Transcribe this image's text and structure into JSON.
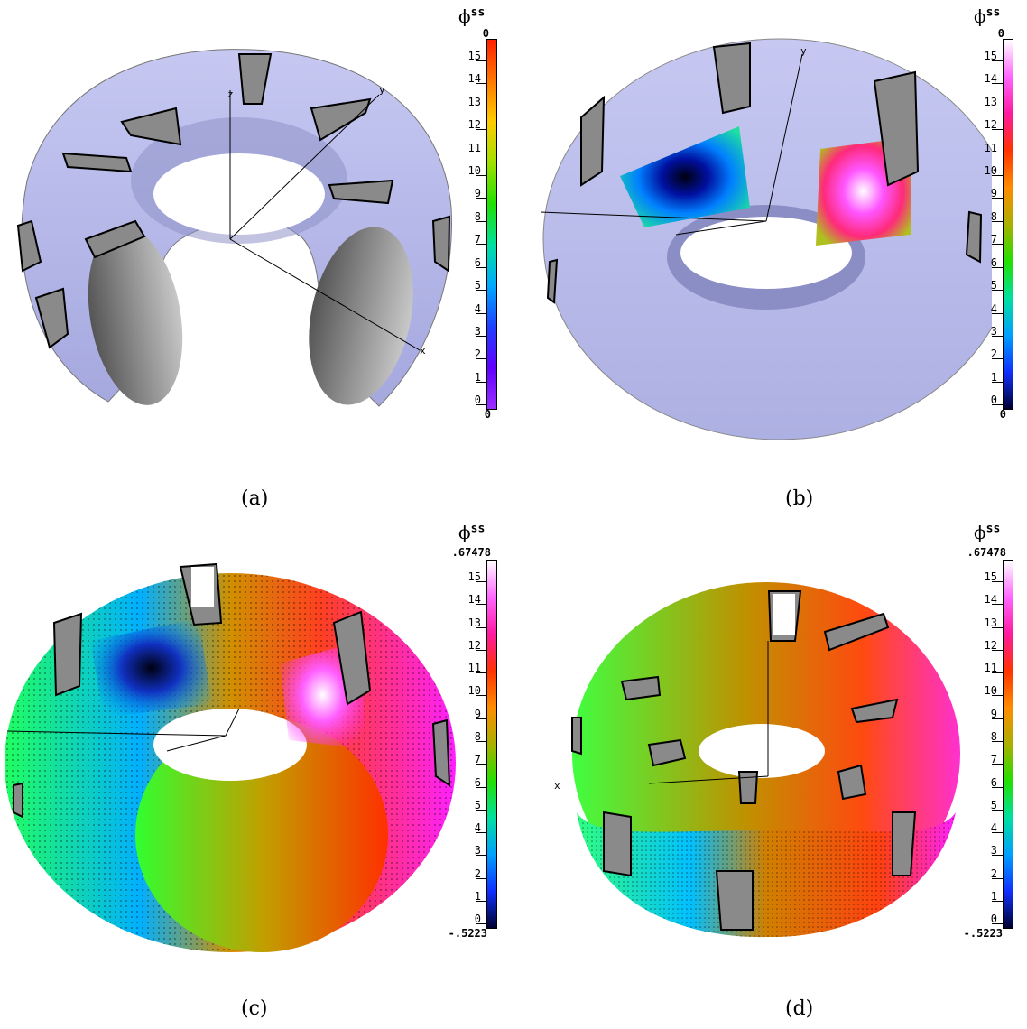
{
  "panels": [
    {
      "caption": "(a)",
      "cb_title": "ϕ",
      "cb_title_sup": "ss",
      "cb_top": "0",
      "cb_bottom": "0",
      "axis_labels": [
        "z",
        "y",
        "x"
      ]
    },
    {
      "caption": "(b)",
      "cb_title": "ϕ",
      "cb_title_sup": "ss",
      "cb_top": "0",
      "cb_bottom": "0",
      "axis_labels": [
        "y"
      ]
    },
    {
      "caption": "(c)",
      "cb_title": "ϕ",
      "cb_title_sup": "ss",
      "cb_top": ".67478",
      "cb_bottom": "-.5223",
      "axis_labels": []
    },
    {
      "caption": "(d)",
      "cb_title": "ϕ",
      "cb_title_sup": "ss",
      "cb_top": ".67478",
      "cb_bottom": "-.5223",
      "axis_labels": [
        "x"
      ]
    }
  ],
  "ticks": [
    "15",
    "14",
    "13",
    "12",
    "11",
    "10",
    "9",
    "8",
    "7",
    "6",
    "5",
    "4",
    "3",
    "2",
    "1",
    "0"
  ],
  "colors": {
    "torus": "#b9bbe8",
    "coil": "#7a7a7a",
    "rainbow": [
      "#ff2200",
      "#ff7a00",
      "#ffcc00",
      "#9be000",
      "#22e000",
      "#00e0a0",
      "#00a8ff",
      "#1e3cff",
      "#6a00ff",
      "#8a2be2"
    ],
    "hot": [
      "#ffffff",
      "#ff66ff",
      "#ff1aa0",
      "#ff3300",
      "#ff8c00",
      "#aab000",
      "#22e000",
      "#00e0a0",
      "#00a0ff",
      "#1030ff",
      "#000030"
    ]
  }
}
